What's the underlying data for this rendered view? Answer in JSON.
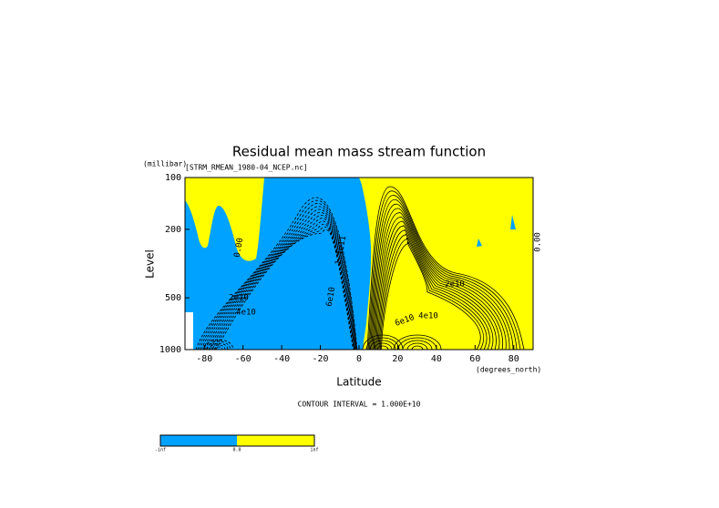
{
  "chart_data": {
    "type": "contour",
    "title": "Residual mean mass stream function",
    "subtitle": "[STRM_RMEAN_1980-04_NCEP.nc]",
    "xlabel": "Latitude",
    "xunits": "(degrees_north)",
    "ylabel": "Level",
    "yunits": "(millibar)",
    "xlim": [
      -90,
      90
    ],
    "xticks": [
      -80,
      -60,
      -40,
      -20,
      0,
      20,
      40,
      60,
      80
    ],
    "ylim": [
      1000,
      100
    ],
    "yticks": [
      100,
      200,
      500,
      1000
    ],
    "log_y": true,
    "fill_colors": [
      "#00a2ff",
      "#ffff00"
    ],
    "contour_labels": [
      "0.00",
      "2e10",
      "4e10",
      "6e10",
      "1.1e11",
      "2e10",
      "4e10",
      "6e10",
      "0.00"
    ],
    "footnote": "CONTOUR INTERVAL = 1.000E+10",
    "colorbar": {
      "labels": [
        "-inf",
        "0.0",
        "inf"
      ]
    }
  }
}
